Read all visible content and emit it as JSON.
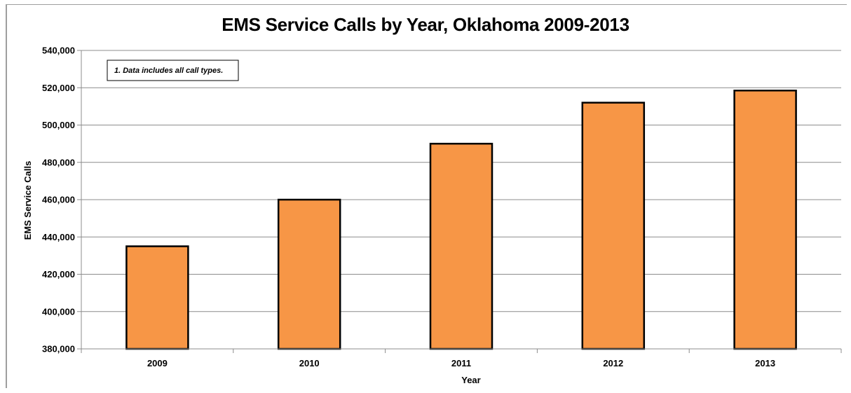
{
  "chart_data": {
    "type": "bar",
    "title": "EMS Service Calls by Year, Oklahoma 2009-2013",
    "xlabel": "Year",
    "ylabel": "EMS Service Calls",
    "categories": [
      "2009",
      "2010",
      "2011",
      "2012",
      "2013"
    ],
    "values": [
      435000,
      460000,
      490000,
      512000,
      518500
    ],
    "ylim": [
      380000,
      540000
    ],
    "yticks": [
      380000,
      400000,
      420000,
      440000,
      460000,
      480000,
      500000,
      520000,
      540000
    ],
    "ytick_labels": [
      "380,000",
      "400,000",
      "420,000",
      "440,000",
      "460,000",
      "480,000",
      "500,000",
      "520,000",
      "540,000"
    ],
    "grid": true,
    "bar_color": "#f79646",
    "bar_edge_color": "#000000",
    "note": "1. Data includes all call types."
  }
}
